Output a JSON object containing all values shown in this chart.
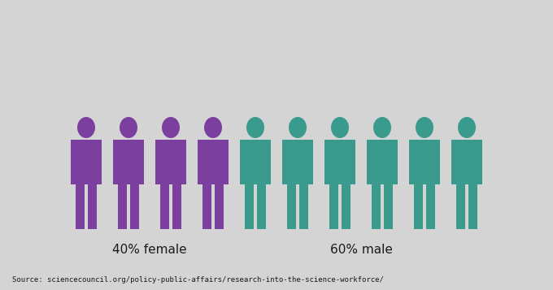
{
  "background_color": "#d4d4d4",
  "female_color": "#7b3fa0",
  "male_color": "#3a9a8c",
  "female_count": 4,
  "male_count": 6,
  "female_label": "40% female",
  "male_label": "60% male",
  "source_text": "Source: sciencecouncil.org/policy-public-affairs/research-into-the-science-workforce/",
  "label_fontsize": 11,
  "source_fontsize": 6.5,
  "label_color": "#1a1a1a",
  "source_color": "#1a1a1a",
  "fig_width": 6.8,
  "fig_height": 3.57,
  "dpi": 100
}
